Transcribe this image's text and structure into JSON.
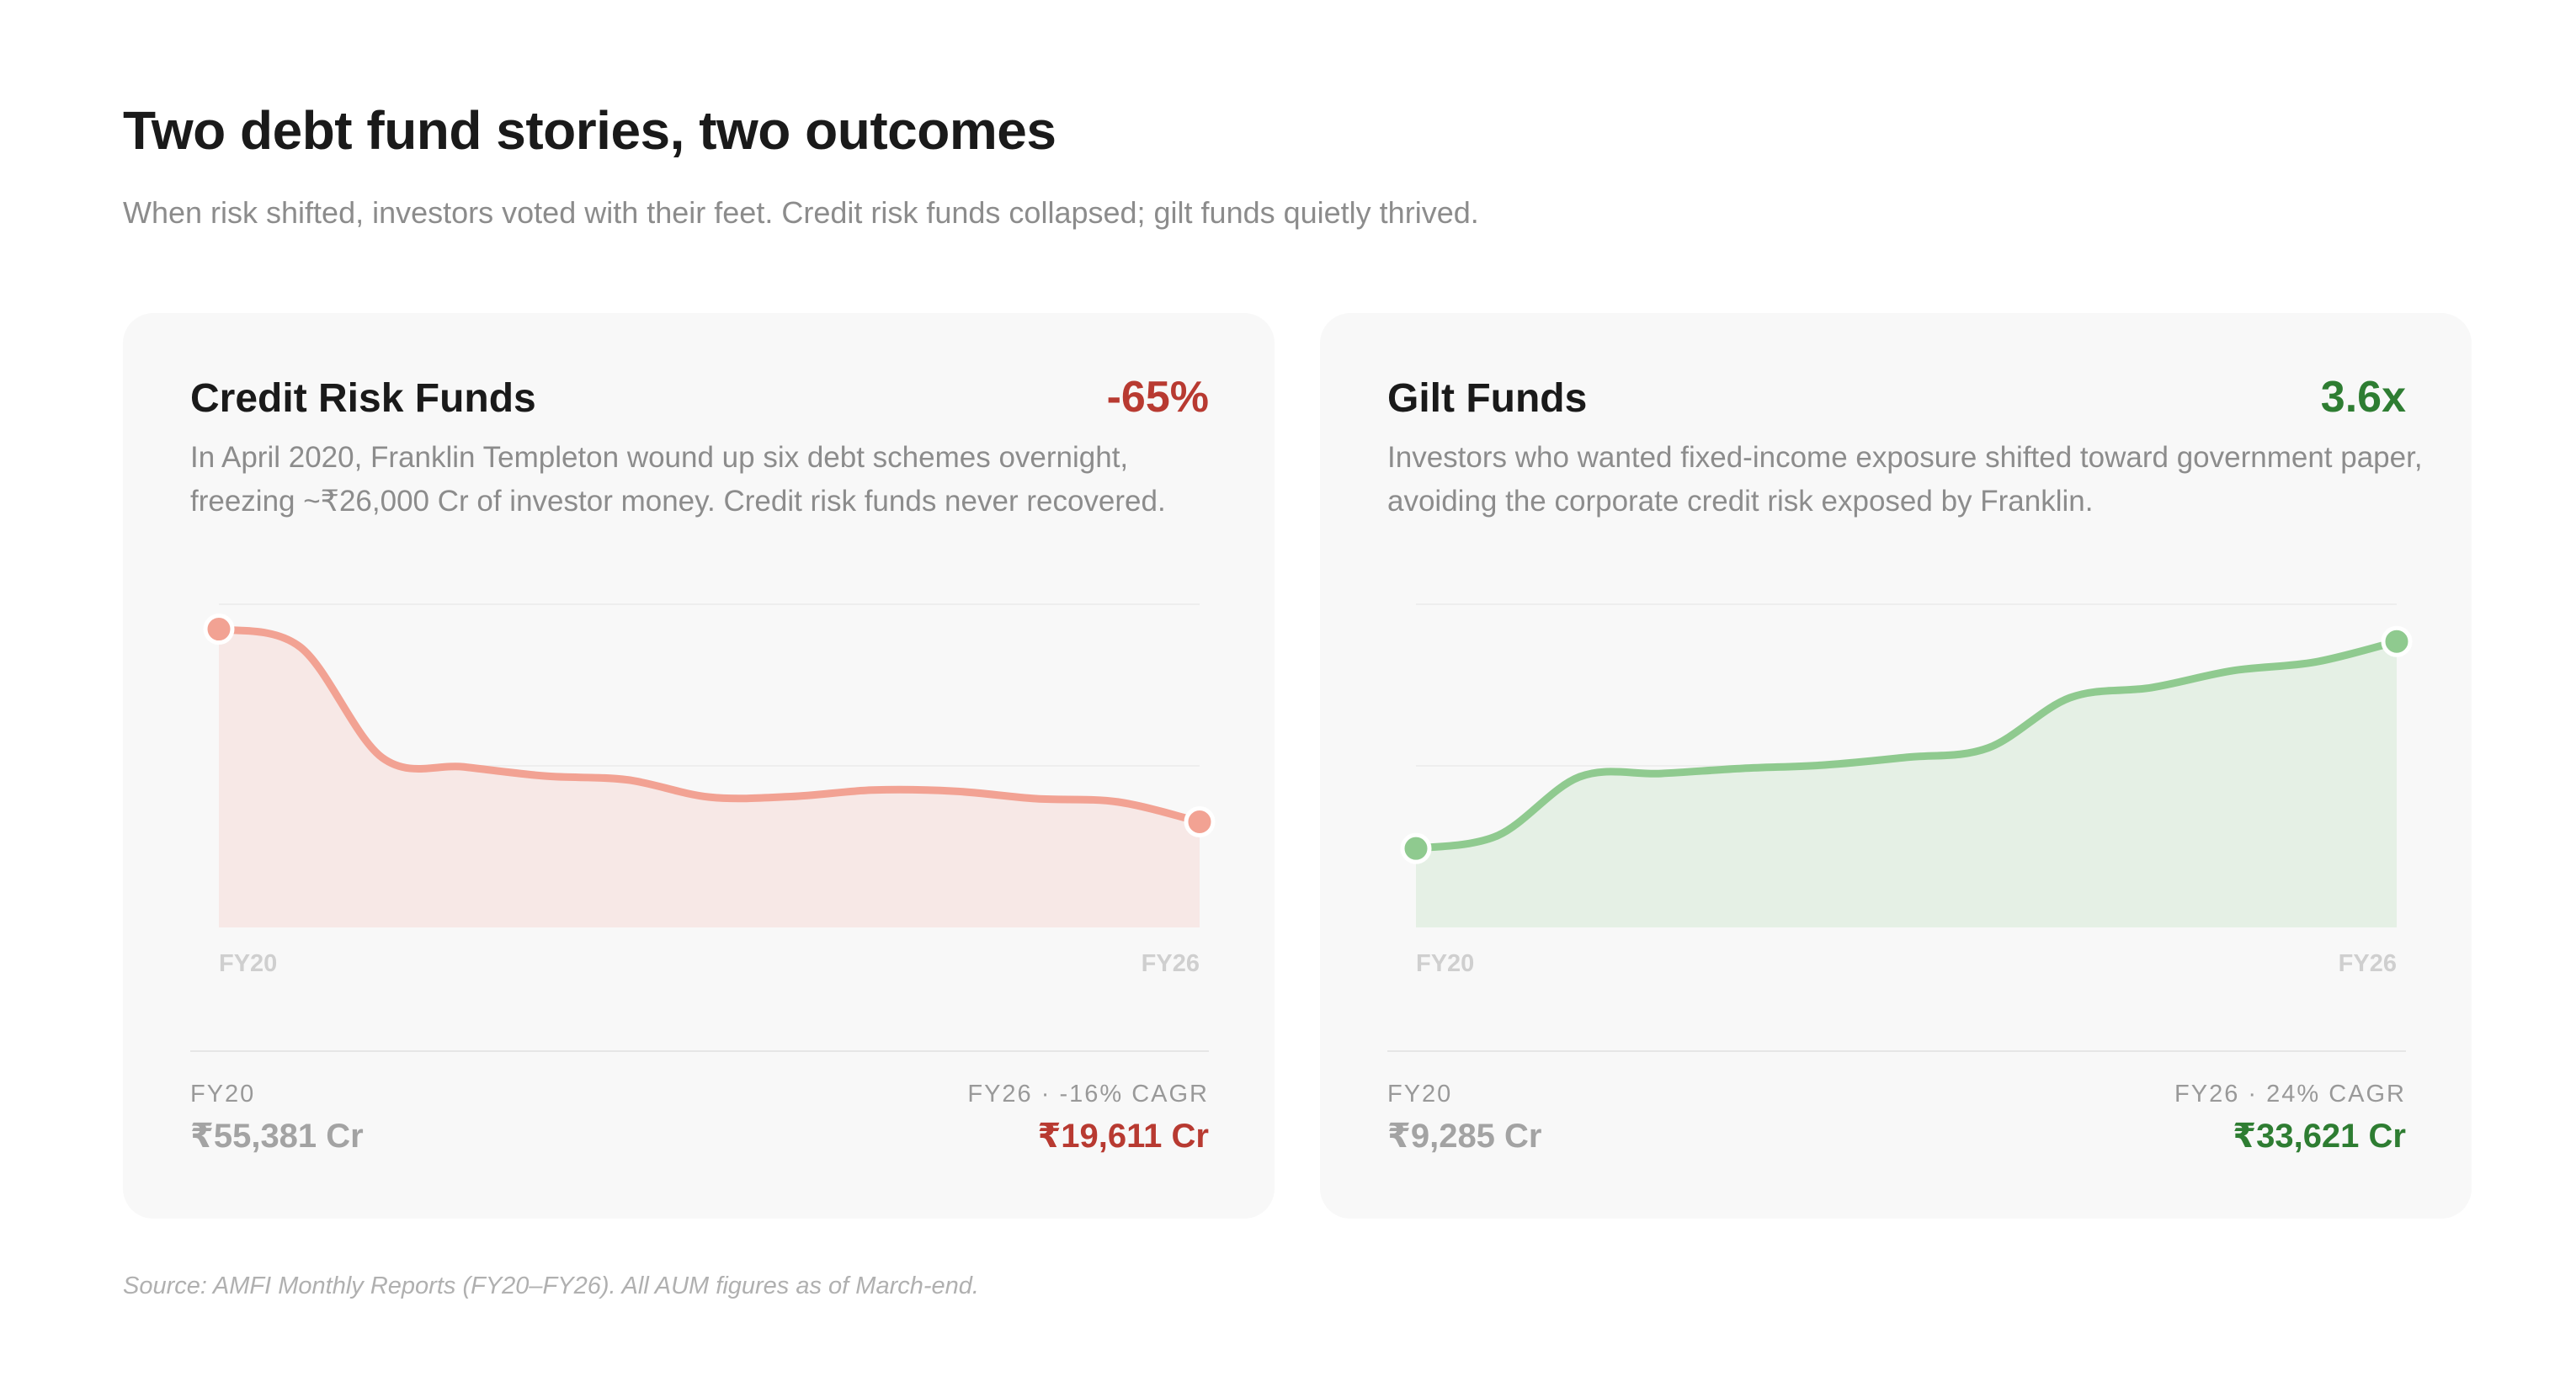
{
  "title": "Two debt fund stories, two outcomes",
  "subtitle": "When risk shifted, investors voted with their feet. Credit risk funds collapsed; gilt funds quietly thrived.",
  "source": "Source: AMFI Monthly Reports (FY20–FY26). All AUM figures as of March-end.",
  "colors": {
    "negative": "#b83a31",
    "positive": "#2e7d32",
    "credit_line": "#f2a293",
    "credit_fill": "#f7e8e6",
    "gilt_line": "#8fca8f",
    "gilt_fill": "#e5f0e5"
  },
  "cards": [
    {
      "title": "Credit Risk Funds",
      "stat": "-65%",
      "description": "In April 2020, Franklin Templeton wound up six debt schemes overnight, freezing ~₹26,000 Cr of investor money. Credit risk funds never recovered.",
      "footer": {
        "start_label": "FY20",
        "start_value": "₹55,381 Cr",
        "end_label": "FY26 · -16% CAGR",
        "end_value": "₹19,611 Cr"
      }
    },
    {
      "title": "Gilt Funds",
      "stat": "3.6x",
      "description": "Investors who wanted fixed-income exposure shifted toward government paper, avoiding the corporate credit risk exposed by Franklin.",
      "footer": {
        "start_label": "FY20",
        "start_value": "₹9,285 Cr",
        "end_label": "FY26 · 24% CAGR",
        "end_value": "₹33,621 Cr"
      }
    }
  ],
  "chart_data": [
    {
      "type": "area",
      "x_ticks": [
        "FY20",
        "FY26"
      ],
      "x": [
        0,
        0.5,
        1,
        1.5,
        2,
        2.5,
        3,
        3.5,
        4,
        4.5,
        5,
        5.5,
        6
      ],
      "values": [
        55381,
        52000,
        31500,
        29800,
        28100,
        27400,
        24200,
        24300,
        25500,
        25300,
        23900,
        23300,
        19611
      ],
      "ylim": [
        0,
        60000
      ]
    },
    {
      "type": "area",
      "x_ticks": [
        "FY20",
        "FY26"
      ],
      "x": [
        0,
        0.5,
        1,
        1.5,
        2,
        2.5,
        3,
        3.5,
        4,
        4.5,
        5,
        5.5,
        6
      ],
      "values": [
        9285,
        10800,
        17700,
        18100,
        18700,
        19100,
        20000,
        21100,
        27000,
        28200,
        30200,
        31200,
        33621
      ],
      "ylim": [
        0,
        38000
      ]
    }
  ]
}
